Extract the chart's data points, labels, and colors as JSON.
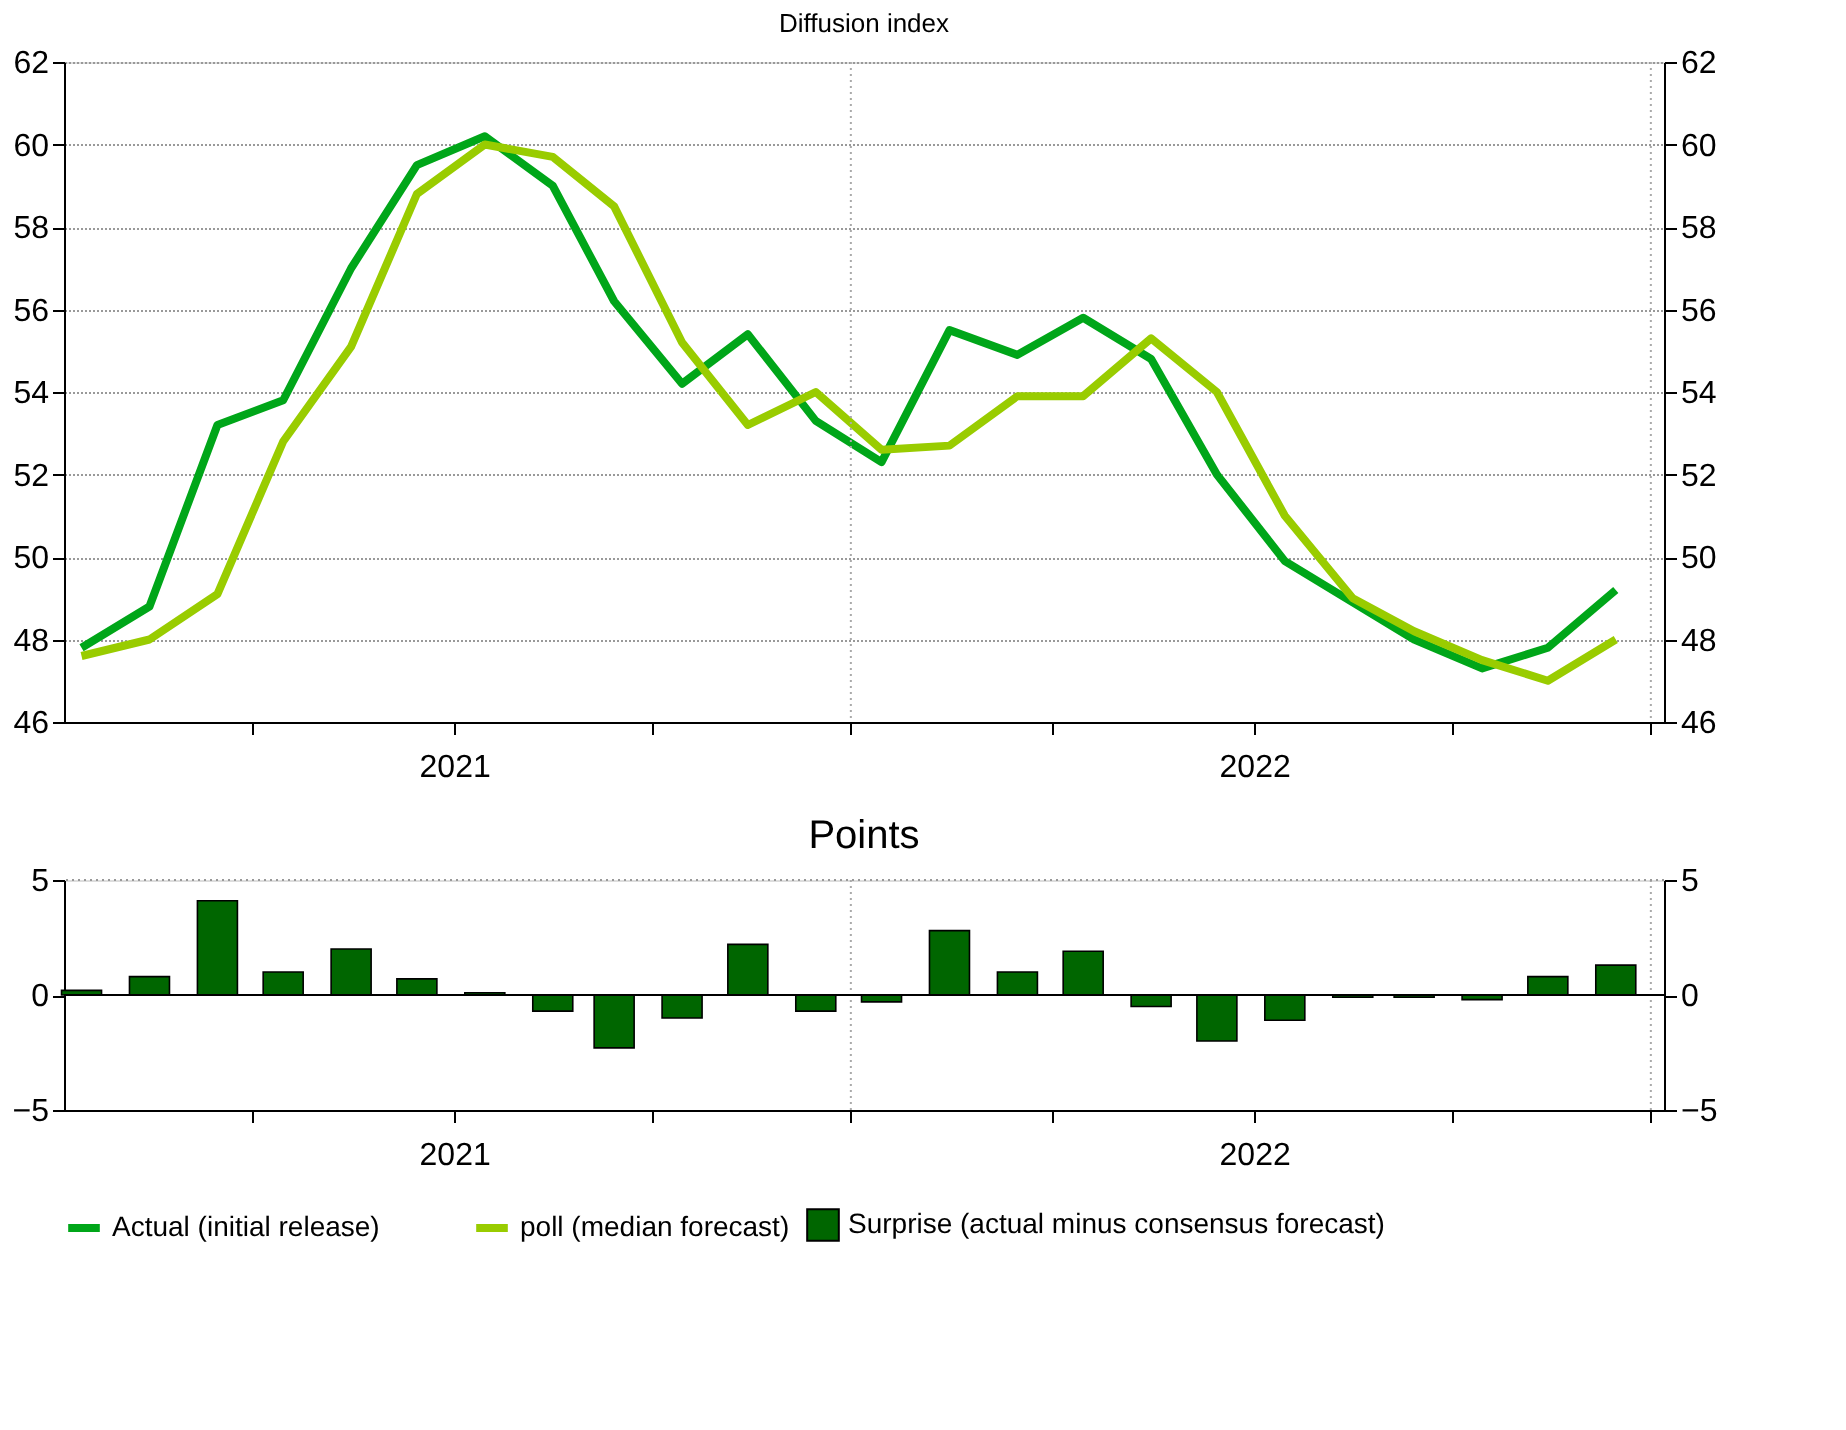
{
  "chart_data": [
    {
      "type": "line",
      "title": "Diffusion index",
      "x": [
        "2020-07-15",
        "2020-08-15",
        "2020-09-15",
        "2020-10-15",
        "2020-11-15",
        "2020-12-15",
        "2021-01-15",
        "2021-02-15",
        "2021-03-15",
        "2021-04-15",
        "2021-05-15",
        "2021-06-15",
        "2021-07-15",
        "2021-08-15",
        "2021-09-15",
        "2021-10-15",
        "2021-11-15",
        "2021-12-15",
        "2022-01-15",
        "2022-02-15",
        "2022-03-15",
        "2022-04-15",
        "2022-05-15",
        "2022-06-15"
      ],
      "series": [
        {
          "name": "Actual (initial release)",
          "color": "#00a619",
          "values": [
            47.8,
            48.8,
            53.2,
            53.8,
            57.0,
            59.5,
            60.2,
            59.0,
            56.2,
            54.2,
            55.4,
            53.3,
            52.3,
            55.5,
            54.9,
            55.8,
            54.8,
            52.0,
            49.9,
            48.9,
            48.0,
            47.3,
            47.8,
            49.2
          ]
        },
        {
          "name": "poll (median forecast)",
          "color": "#99cc00",
          "values": [
            47.6,
            48.0,
            49.1,
            52.8,
            55.1,
            58.8,
            60.0,
            59.7,
            58.5,
            55.2,
            53.2,
            54.0,
            52.6,
            52.7,
            53.9,
            53.9,
            55.3,
            54.0,
            51.0,
            49.0,
            48.2,
            47.5,
            47.0,
            48.0
          ]
        }
      ],
      "xlim": [
        "2020-07-07",
        "2022-07-07"
      ],
      "xticks": [
        {
          "value": "2020-10-01",
          "label": null
        },
        {
          "value": "2021-01-01",
          "label": "2021"
        },
        {
          "value": "2021-04-01",
          "label": null
        },
        {
          "value": "2021-07-01",
          "label": null
        },
        {
          "value": "2021-10-01",
          "label": null
        },
        {
          "value": "2022-01-01",
          "label": "2022"
        },
        {
          "value": "2022-04-01",
          "label": null
        },
        {
          "value": "2022-07-01",
          "label": null
        }
      ],
      "ylim": [
        46,
        62
      ],
      "yticks": [
        46,
        48,
        50,
        52,
        54,
        56,
        58,
        60,
        62
      ],
      "y2lim": [
        46,
        62
      ],
      "y2ticks": [
        46,
        48,
        50,
        52,
        54,
        56,
        58,
        60,
        62
      ],
      "ref_lines": [
        {
          "axis": "x",
          "value": "2021-07-01",
          "line_style": "dotted",
          "color": "#aaaaaa"
        },
        {
          "axis": "x",
          "value": "2022-07-01",
          "line_style": "dotted",
          "color": "#aaaaaa"
        }
      ],
      "grid": "y",
      "legend": "bottom",
      "line_style": "solid"
    },
    {
      "type": "bar",
      "title": "Points",
      "x": [
        "2020-07-15",
        "2020-08-15",
        "2020-09-15",
        "2020-10-15",
        "2020-11-15",
        "2020-12-15",
        "2021-01-15",
        "2021-02-15",
        "2021-03-15",
        "2021-04-15",
        "2021-05-15",
        "2021-06-15",
        "2021-07-15",
        "2021-08-15",
        "2021-09-15",
        "2021-10-15",
        "2021-11-15",
        "2021-12-15",
        "2022-01-15",
        "2022-02-15",
        "2022-03-15",
        "2022-04-15",
        "2022-05-15",
        "2022-06-15"
      ],
      "series": [
        {
          "name": "Surprise (actual minus consensus forecast)",
          "color": "#006600",
          "values": [
            0.2,
            0.8,
            4.1,
            1.0,
            2.0,
            0.7,
            0.1,
            -0.7,
            -2.3,
            -1.0,
            2.2,
            -0.7,
            -0.3,
            2.8,
            1.0,
            1.9,
            -0.5,
            -2.0,
            -1.1,
            -0.1,
            -0.1,
            -0.2,
            0.8,
            1.3
          ]
        }
      ],
      "xlim": [
        "2020-07-07",
        "2022-07-07"
      ],
      "xticks": [
        {
          "value": "2020-10-01",
          "label": null
        },
        {
          "value": "2021-01-01",
          "label": "2021"
        },
        {
          "value": "2021-04-01",
          "label": null
        },
        {
          "value": "2021-07-01",
          "label": null
        },
        {
          "value": "2021-10-01",
          "label": null
        },
        {
          "value": "2022-01-01",
          "label": "2022"
        },
        {
          "value": "2022-04-01",
          "label": null
        },
        {
          "value": "2022-07-01",
          "label": null
        }
      ],
      "ylim": [
        -5,
        5
      ],
      "yticks": [
        -5,
        0,
        5
      ],
      "y2lim": [
        -5,
        5
      ],
      "y2ticks": [
        -5,
        0,
        5
      ],
      "ref_lines": [
        {
          "axis": "x",
          "value": "2021-07-01",
          "line_style": "dotted",
          "color": "#aaaaaa"
        },
        {
          "axis": "x",
          "value": "2022-07-01",
          "line_style": "dotted",
          "color": "#aaaaaa"
        },
        {
          "axis": "y",
          "value": 0,
          "line_style": "solid",
          "color": "#000000"
        },
        {
          "axis": "y",
          "value": 5,
          "line_style": "dotted",
          "color": "#999999"
        }
      ],
      "legend": "bottom"
    }
  ]
}
